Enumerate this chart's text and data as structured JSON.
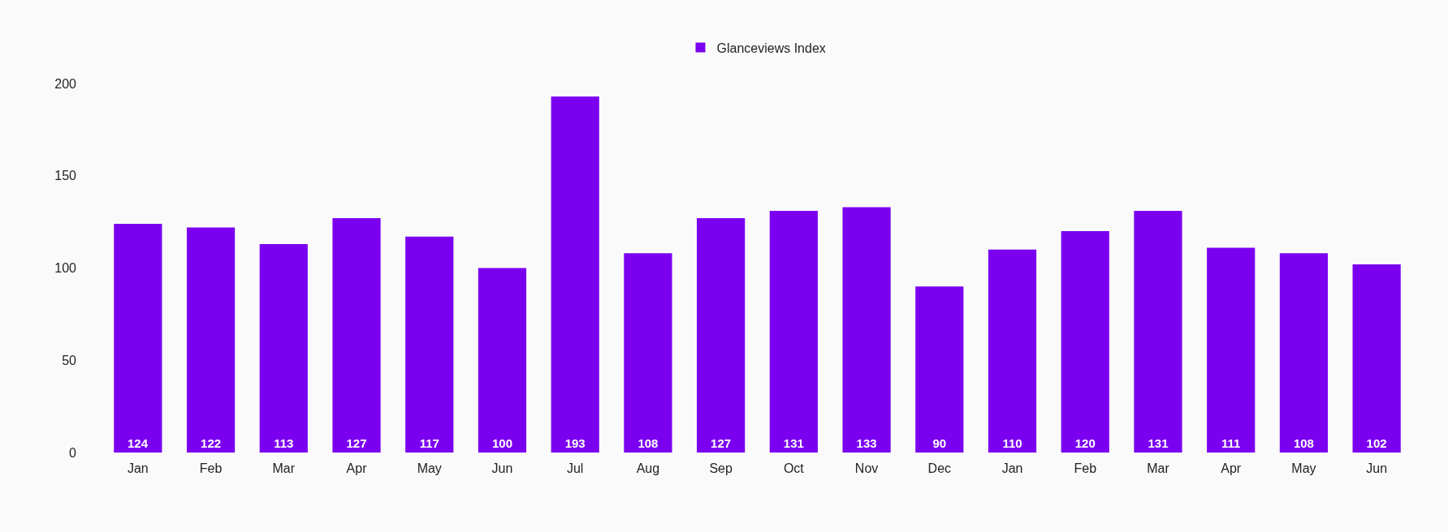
{
  "chart_data": {
    "type": "bar",
    "categories": [
      "Jan",
      "Feb",
      "Mar",
      "Apr",
      "May",
      "Jun",
      "Jul",
      "Aug",
      "Sep",
      "Oct",
      "Nov",
      "Dec",
      "Jan",
      "Feb",
      "Mar",
      "Apr",
      "May",
      "Jun"
    ],
    "series": [
      {
        "name": "Glanceviews Index",
        "color": "#7b00f0",
        "values": [
          124,
          122,
          113,
          127,
          117,
          100,
          193,
          108,
          127,
          131,
          133,
          90,
          110,
          120,
          131,
          111,
          108,
          102
        ]
      }
    ],
    "ylim": [
      0,
      200
    ],
    "yticks": [
      0,
      50,
      100,
      150,
      200
    ],
    "legend": "top",
    "data_labels": true
  }
}
